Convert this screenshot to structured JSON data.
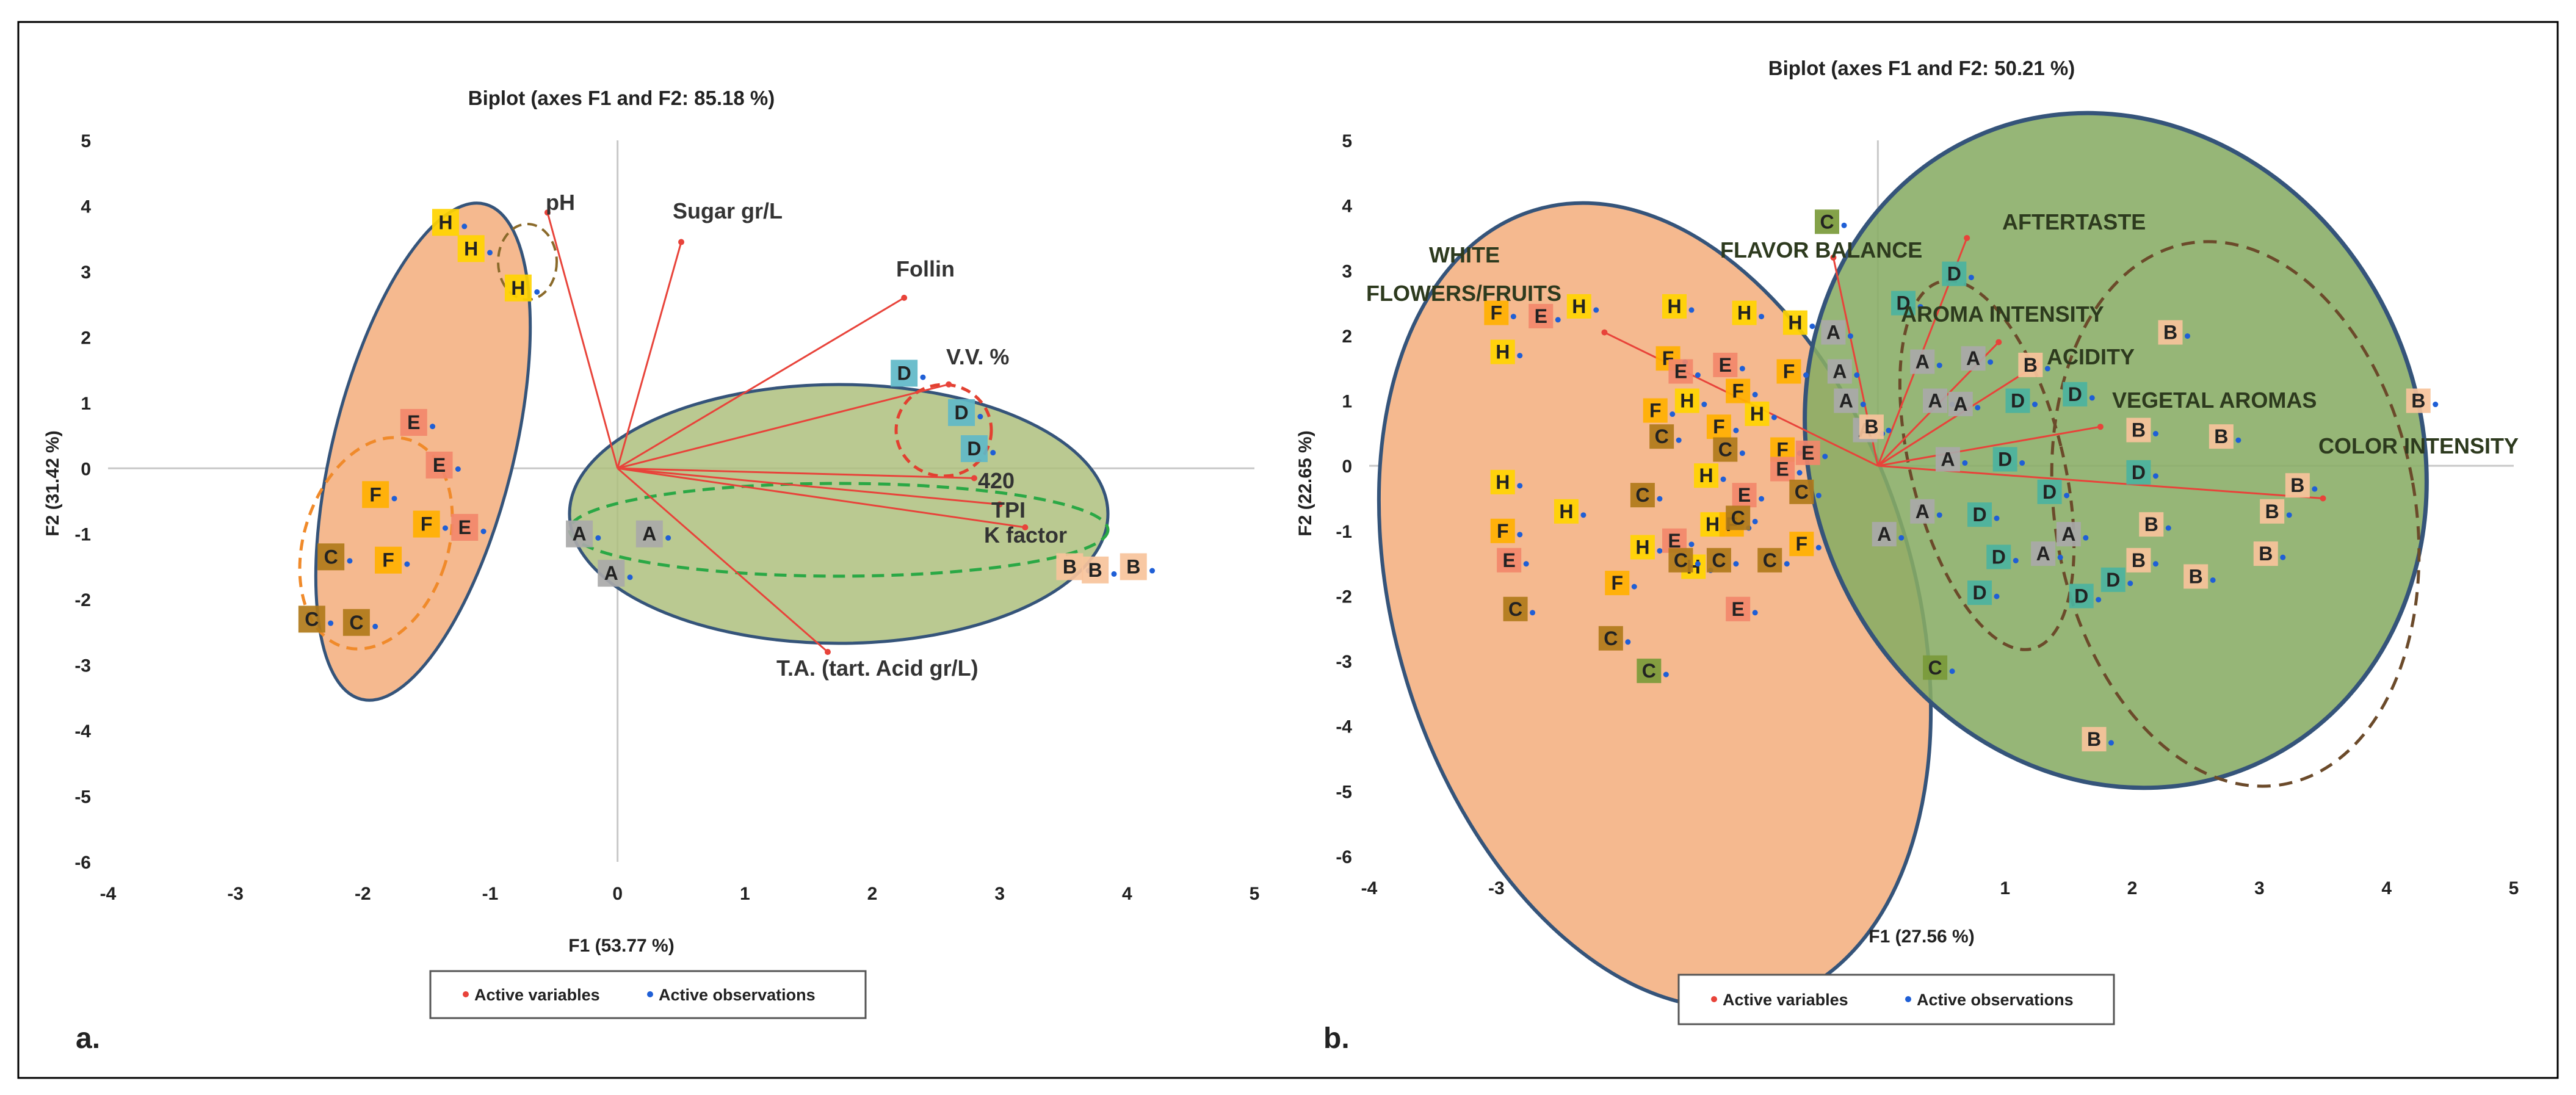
{
  "colors": {
    "vector": "#e8433a",
    "obs_dot": "#1f5fd6",
    "orange_fill": "#f5b98f",
    "green_fill": "#8db35b",
    "ellipse_stroke": "#35547a",
    "H": "#ffd400",
    "E": "#f2876b",
    "F": "#ffb000",
    "C": "#b07a1a",
    "A": "#a9a9a9",
    "D": "#5fb8c8",
    "B": "#f7c39b",
    "C2": "#7a9a3a",
    "Dteal": "#4bb3a0"
  },
  "legend": {
    "active_variables": "Active variables",
    "active_observations": "Active observations"
  },
  "chart_data": [
    {
      "panel": "a.",
      "type": "scatter",
      "title": "Biplot (axes F1 and F2: 85.18 %)",
      "xlabel": "F1 (53.77 %)",
      "ylabel": "F2 (31.42 %)",
      "xlim": [
        -4,
        5
      ],
      "ylim": [
        -6,
        5
      ],
      "xticks": [
        -4,
        -3,
        -2,
        -1,
        0,
        1,
        2,
        3,
        4,
        5
      ],
      "yticks": [
        -6,
        -5,
        -4,
        -3,
        -2,
        -1,
        0,
        1,
        2,
        3,
        4,
        5
      ],
      "variables": [
        {
          "name": "pH",
          "x": -0.55,
          "y": 3.9
        },
        {
          "name": "Sugar gr/L",
          "x": 0.5,
          "y": 3.45
        },
        {
          "name": "Follin",
          "x": 2.25,
          "y": 2.6
        },
        {
          "name": "V.V. %",
          "x": 2.6,
          "y": 1.28
        },
        {
          "name": "420",
          "x": 2.8,
          "y": -0.15
        },
        {
          "name": "TPI",
          "x": 3.0,
          "y": -0.55
        },
        {
          "name": "K factor",
          "x": 3.2,
          "y": -0.9
        },
        {
          "name": "T.A. (tart. Acid gr/L)",
          "x": 1.65,
          "y": -2.8
        }
      ],
      "observations": [
        {
          "label": "H",
          "x": -1.35,
          "y": 3.75
        },
        {
          "label": "H",
          "x": -1.15,
          "y": 3.35
        },
        {
          "label": "H",
          "x": -0.78,
          "y": 2.75
        },
        {
          "label": "E",
          "x": -1.6,
          "y": 0.7
        },
        {
          "label": "E",
          "x": -1.4,
          "y": 0.05
        },
        {
          "label": "E",
          "x": -1.2,
          "y": -0.9
        },
        {
          "label": "F",
          "x": -1.9,
          "y": -0.4
        },
        {
          "label": "F",
          "x": -1.5,
          "y": -0.85
        },
        {
          "label": "F",
          "x": -1.8,
          "y": -1.4
        },
        {
          "label": "C",
          "x": -2.25,
          "y": -1.35
        },
        {
          "label": "C",
          "x": -2.4,
          "y": -2.3
        },
        {
          "label": "C",
          "x": -2.05,
          "y": -2.35
        },
        {
          "label": "A",
          "x": -0.3,
          "y": -1.0
        },
        {
          "label": "A",
          "x": 0.25,
          "y": -1.0
        },
        {
          "label": "A",
          "x": -0.05,
          "y": -1.6
        },
        {
          "label": "D",
          "x": 2.25,
          "y": 1.45
        },
        {
          "label": "D",
          "x": 2.7,
          "y": 0.85
        },
        {
          "label": "D",
          "x": 2.8,
          "y": 0.3
        },
        {
          "label": "B",
          "x": 3.55,
          "y": -1.5
        },
        {
          "label": "B",
          "x": 3.75,
          "y": -1.55
        },
        {
          "label": "B",
          "x": 4.05,
          "y": -1.5
        }
      ],
      "annotation": "a."
    },
    {
      "panel": "b.",
      "type": "scatter",
      "title": "Biplot (axes F1 and F2: 50.21 %)",
      "xlabel": "F1 (27.56 %)",
      "ylabel": "F2 (22.65 %)",
      "xlim": [
        -4,
        5
      ],
      "ylim": [
        -6,
        5
      ],
      "xticks": [
        -4,
        -3,
        -2,
        -1,
        0,
        1,
        2,
        3,
        4,
        5
      ],
      "yticks": [
        -6,
        -5,
        -4,
        -3,
        -2,
        -1,
        0,
        1,
        2,
        3,
        4,
        5
      ],
      "variables": [
        {
          "name": "WHITE",
          "x": -2.15,
          "y": 2.05
        },
        {
          "name": "FLOWERS/FRUITS",
          "x": -2.15,
          "y": 2.05
        },
        {
          "name": "FLAVOR BALANCE",
          "x": -0.35,
          "y": 3.2
        },
        {
          "name": "AFTERTASTE",
          "x": 0.7,
          "y": 3.5
        },
        {
          "name": "AROMA INTENSITY",
          "x": 0.95,
          "y": 1.9
        },
        {
          "name": "ACIDITY",
          "x": 1.25,
          "y": 1.55
        },
        {
          "name": "VEGETAL AROMAS",
          "x": 1.75,
          "y": 0.6
        },
        {
          "name": "COLOR INTENSITY",
          "x": 3.5,
          "y": -0.5
        }
      ],
      "observations": [
        {
          "label": "H",
          "x": -2.35,
          "y": 2.45
        },
        {
          "label": "H",
          "x": -2.95,
          "y": 1.75
        },
        {
          "label": "H",
          "x": -1.6,
          "y": 2.45
        },
        {
          "label": "H",
          "x": -1.05,
          "y": 2.35
        },
        {
          "label": "H",
          "x": -0.65,
          "y": 2.2
        },
        {
          "label": "H",
          "x": -1.5,
          "y": 1.0
        },
        {
          "label": "H",
          "x": -0.95,
          "y": 0.8
        },
        {
          "label": "H",
          "x": -2.95,
          "y": -0.25
        },
        {
          "label": "H",
          "x": -2.45,
          "y": -0.7
        },
        {
          "label": "H",
          "x": -1.35,
          "y": -0.15
        },
        {
          "label": "H",
          "x": -1.85,
          "y": -1.25
        },
        {
          "label": "H",
          "x": -1.45,
          "y": -1.55
        },
        {
          "label": "H",
          "x": -1.3,
          "y": -0.9
        },
        {
          "label": "F",
          "x": -3.0,
          "y": 2.35
        },
        {
          "label": "F",
          "x": -1.65,
          "y": 1.65
        },
        {
          "label": "F",
          "x": -1.1,
          "y": 1.15
        },
        {
          "label": "F",
          "x": -1.25,
          "y": 0.6
        },
        {
          "label": "F",
          "x": -1.75,
          "y": 0.85
        },
        {
          "label": "F",
          "x": -2.95,
          "y": -1.0
        },
        {
          "label": "F",
          "x": -0.75,
          "y": 0.25
        },
        {
          "label": "F",
          "x": -2.05,
          "y": -1.8
        },
        {
          "label": "F",
          "x": -0.7,
          "y": 1.45
        },
        {
          "label": "F",
          "x": -1.15,
          "y": -0.9
        },
        {
          "label": "F",
          "x": -0.6,
          "y": -1.2
        },
        {
          "label": "E",
          "x": -2.65,
          "y": 2.3
        },
        {
          "label": "E",
          "x": -1.55,
          "y": 1.45
        },
        {
          "label": "E",
          "x": -1.2,
          "y": 1.55
        },
        {
          "label": "E",
          "x": -0.55,
          "y": 0.2
        },
        {
          "label": "E",
          "x": -1.05,
          "y": -0.45
        },
        {
          "label": "E",
          "x": -0.75,
          "y": -0.05
        },
        {
          "label": "E",
          "x": -1.6,
          "y": -1.15
        },
        {
          "label": "E",
          "x": -2.9,
          "y": -1.45
        },
        {
          "label": "E",
          "x": -1.1,
          "y": -2.2
        },
        {
          "label": "C",
          "x": -2.85,
          "y": -2.2
        },
        {
          "label": "C",
          "x": -2.1,
          "y": -2.65
        },
        {
          "label": "C",
          "x": -1.8,
          "y": -3.15
        },
        {
          "label": "C",
          "x": -1.7,
          "y": 0.45
        },
        {
          "label": "C",
          "x": -1.2,
          "y": 0.25
        },
        {
          "label": "C",
          "x": -1.85,
          "y": -0.45
        },
        {
          "label": "C",
          "x": -1.1,
          "y": -0.8
        },
        {
          "label": "C",
          "x": -1.55,
          "y": -1.45
        },
        {
          "label": "C",
          "x": -1.25,
          "y": -1.45
        },
        {
          "label": "C",
          "x": -0.85,
          "y": -1.45
        },
        {
          "label": "C",
          "x": -0.6,
          "y": -0.4
        },
        {
          "label": "C",
          "x": -0.4,
          "y": 3.75
        },
        {
          "label": "C",
          "x": 0.45,
          "y": -3.1
        },
        {
          "label": "A",
          "x": -0.35,
          "y": 2.05
        },
        {
          "label": "A",
          "x": -0.3,
          "y": 1.45
        },
        {
          "label": "A",
          "x": -0.25,
          "y": 1.0
        },
        {
          "label": "A",
          "x": 0.35,
          "y": 1.6
        },
        {
          "label": "A",
          "x": 0.75,
          "y": 1.65
        },
        {
          "label": "A",
          "x": 0.45,
          "y": 1.0
        },
        {
          "label": "A",
          "x": 0.65,
          "y": 0.95
        },
        {
          "label": "A",
          "x": 0.55,
          "y": 0.1
        },
        {
          "label": "A",
          "x": 0.35,
          "y": -0.7
        },
        {
          "label": "A",
          "x": 1.3,
          "y": -1.35
        },
        {
          "label": "A",
          "x": 1.5,
          "y": -1.05
        },
        {
          "label": "A",
          "x": 0.05,
          "y": -1.05
        },
        {
          "label": "A",
          "x": -0.1,
          "y": 0.55
        },
        {
          "label": "D",
          "x": 0.6,
          "y": 2.95
        },
        {
          "label": "D",
          "x": 0.2,
          "y": 2.5
        },
        {
          "label": "D",
          "x": 1.1,
          "y": 1.0
        },
        {
          "label": "D",
          "x": 1.55,
          "y": 1.1
        },
        {
          "label": "D",
          "x": 1.0,
          "y": 0.1
        },
        {
          "label": "D",
          "x": 1.35,
          "y": -0.4
        },
        {
          "label": "D",
          "x": 0.8,
          "y": -0.75
        },
        {
          "label": "D",
          "x": 0.95,
          "y": -1.4
        },
        {
          "label": "D",
          "x": 0.8,
          "y": -1.95
        },
        {
          "label": "D",
          "x": 1.6,
          "y": -2.0
        },
        {
          "label": "D",
          "x": 1.85,
          "y": -1.75
        },
        {
          "label": "D",
          "x": 2.05,
          "y": -0.1
        },
        {
          "label": "B",
          "x": 2.3,
          "y": 2.05
        },
        {
          "label": "B",
          "x": 1.2,
          "y": 1.55
        },
        {
          "label": "B",
          "x": 2.05,
          "y": 0.55
        },
        {
          "label": "B",
          "x": 2.7,
          "y": 0.45
        },
        {
          "label": "B",
          "x": 3.3,
          "y": -0.3
        },
        {
          "label": "B",
          "x": 3.1,
          "y": -0.7
        },
        {
          "label": "B",
          "x": 2.15,
          "y": -0.9
        },
        {
          "label": "B",
          "x": 2.05,
          "y": -1.45
        },
        {
          "label": "B",
          "x": 2.5,
          "y": -1.7
        },
        {
          "label": "B",
          "x": 3.05,
          "y": -1.35
        },
        {
          "label": "B",
          "x": 4.25,
          "y": 1.0
        },
        {
          "label": "B",
          "x": 1.7,
          "y": -4.2
        },
        {
          "label": "B",
          "x": -0.05,
          "y": 0.6
        }
      ],
      "annotation": "b."
    }
  ]
}
